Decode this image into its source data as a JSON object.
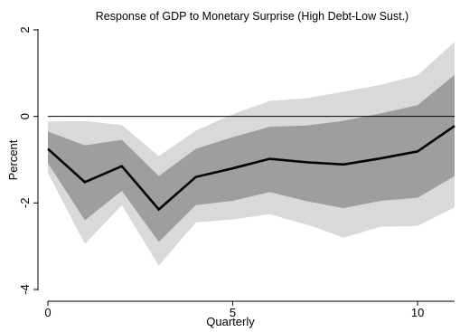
{
  "chart_data": {
    "type": "line",
    "title": "Response of GDP to Monetary Surprise (High Debt-Low Sust.)",
    "xlabel": "Quarterly",
    "ylabel": "Percent",
    "xlim": [
      0,
      11
    ],
    "ylim": [
      -4,
      2
    ],
    "x_ticks": [
      0,
      5,
      10
    ],
    "x_tick_labels": [
      "0",
      "5",
      "10"
    ],
    "y_ticks": [
      -4,
      -2,
      0,
      2
    ],
    "y_tick_labels": [
      "-4",
      "-2",
      "0",
      "2"
    ],
    "reference_line": 0,
    "grid": false,
    "x": [
      0,
      1,
      2,
      3,
      4,
      5,
      6,
      7,
      8,
      9,
      10,
      11
    ],
    "series": [
      {
        "role": "point_estimate",
        "color": "#000000",
        "values": [
          -0.75,
          -1.52,
          -1.15,
          -2.15,
          -1.4,
          -1.2,
          -0.98,
          -1.06,
          -1.11,
          -0.97,
          -0.81,
          -0.22
        ]
      },
      {
        "role": "outer_band_upper",
        "color": "#d9d9d9",
        "values": [
          -0.12,
          -0.11,
          -0.2,
          -0.92,
          -0.33,
          0.05,
          0.36,
          0.42,
          0.57,
          0.73,
          0.95,
          1.72
        ]
      },
      {
        "role": "outer_band_lower",
        "color": "#d9d9d9",
        "values": [
          -1.3,
          -2.95,
          -2.05,
          -3.45,
          -2.45,
          -2.38,
          -2.26,
          -2.5,
          -2.8,
          -2.55,
          -2.53,
          -2.1
        ]
      },
      {
        "role": "inner_band_upper",
        "color": "#9e9e9e",
        "values": [
          -0.35,
          -0.67,
          -0.54,
          -1.38,
          -0.75,
          -0.48,
          -0.24,
          -0.21,
          -0.1,
          0.07,
          0.26,
          0.96
        ]
      },
      {
        "role": "inner_band_lower",
        "color": "#9e9e9e",
        "values": [
          -1.08,
          -2.4,
          -1.72,
          -2.9,
          -2.05,
          -1.95,
          -1.75,
          -1.96,
          -2.12,
          -1.95,
          -1.88,
          -1.38
        ]
      }
    ]
  }
}
